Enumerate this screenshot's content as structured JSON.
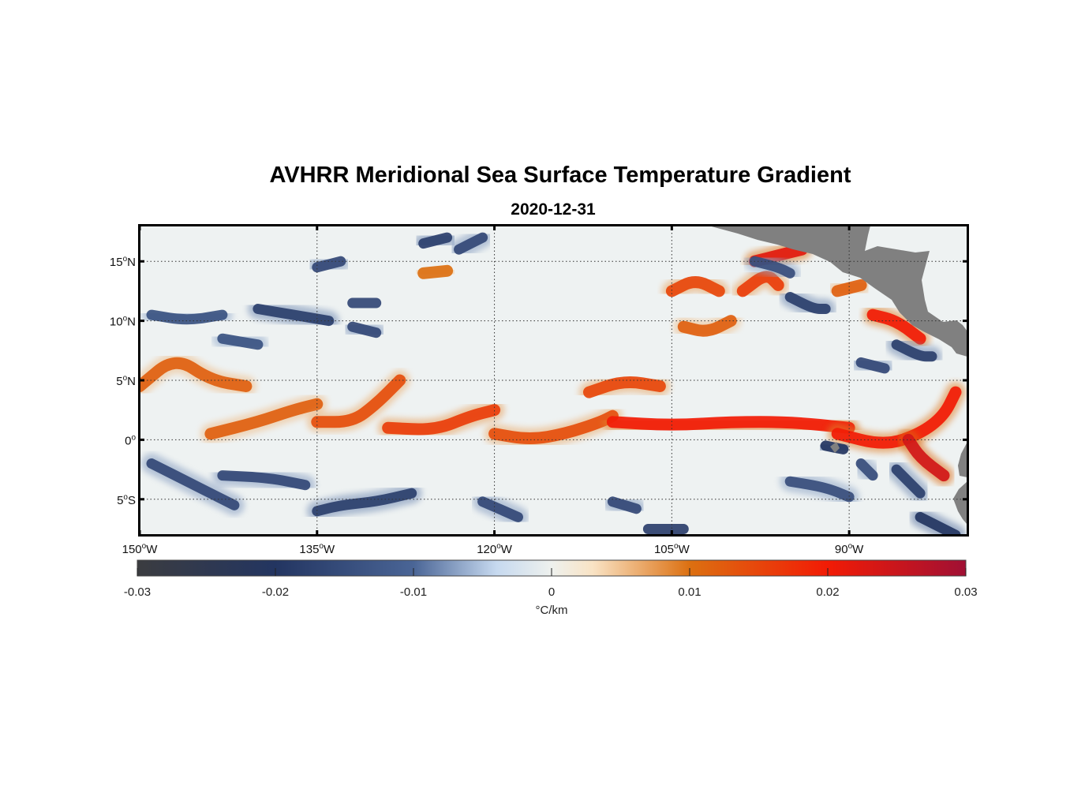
{
  "title": "AVHRR Meridional Sea Surface Temperature Gradient",
  "subtitle": "2020-12-31",
  "colorbar": {
    "units": "°C/km",
    "range": [
      -0.03,
      0.03
    ],
    "ticks": [
      "-0.03",
      "-0.02",
      "-0.01",
      "0",
      "0.01",
      "0.02",
      "0.03"
    ],
    "tick_values": [
      -0.03,
      -0.02,
      -0.01,
      0,
      0.01,
      0.02,
      0.03
    ],
    "stops": [
      {
        "value": -0.03,
        "color": "#3b3c40"
      },
      {
        "value": -0.02,
        "color": "#233561"
      },
      {
        "value": -0.01,
        "color": "#4a6596"
      },
      {
        "value": -0.004,
        "color": "#c6d9ef"
      },
      {
        "value": 0,
        "color": "#eef1ee"
      },
      {
        "value": 0.003,
        "color": "#f9e3c4"
      },
      {
        "value": 0.01,
        "color": "#dc7011"
      },
      {
        "value": 0.02,
        "color": "#f21b05"
      },
      {
        "value": 0.03,
        "color": "#a01034"
      }
    ]
  },
  "map": {
    "lon_range": [
      -150,
      -80
    ],
    "lat_range": [
      -8,
      18
    ],
    "land_color": "#808080",
    "grid": "dotted",
    "x_ticks": [
      {
        "lon": -150,
        "deg": "150",
        "hemi": "W"
      },
      {
        "lon": -135,
        "deg": "135",
        "hemi": "W"
      },
      {
        "lon": -120,
        "deg": "120",
        "hemi": "W"
      },
      {
        "lon": -105,
        "deg": "105",
        "hemi": "W"
      },
      {
        "lon": -90,
        "deg": "90",
        "hemi": "W"
      }
    ],
    "y_ticks": [
      {
        "lat": 15,
        "deg": "15",
        "hemi": "N"
      },
      {
        "lat": 10,
        "deg": "10",
        "hemi": "N"
      },
      {
        "lat": 5,
        "deg": "5",
        "hemi": "N"
      },
      {
        "lat": 0,
        "deg": "0",
        "hemi": ""
      },
      {
        "lat": -5,
        "deg": "5",
        "hemi": "S"
      }
    ],
    "field_features": [
      {
        "sign": "positive",
        "level": 0.012,
        "path": [
          [
            -150,
            4.5
          ],
          [
            -147,
            7
          ],
          [
            -144,
            5
          ],
          [
            -141,
            4.5
          ]
        ]
      },
      {
        "sign": "positive",
        "level": 0.012,
        "path": [
          [
            -144,
            0.5
          ],
          [
            -140,
            1.5
          ],
          [
            -137,
            2.5
          ],
          [
            -135,
            3
          ]
        ]
      },
      {
        "sign": "positive",
        "level": 0.014,
        "path": [
          [
            -135,
            1.5
          ],
          [
            -132,
            1.5
          ],
          [
            -130,
            3
          ],
          [
            -128,
            5
          ]
        ]
      },
      {
        "sign": "positive",
        "level": 0.016,
        "path": [
          [
            -129,
            1
          ],
          [
            -125,
            0.8
          ],
          [
            -122,
            2
          ],
          [
            -120,
            2.5
          ]
        ]
      },
      {
        "sign": "positive",
        "level": 0.014,
        "path": [
          [
            -120,
            0.5
          ],
          [
            -117,
            0
          ],
          [
            -114,
            0.5
          ],
          [
            -111,
            1.5
          ],
          [
            -110,
            2
          ]
        ]
      },
      {
        "sign": "positive",
        "level": 0.015,
        "path": [
          [
            -112,
            4
          ],
          [
            -109,
            5
          ],
          [
            -106,
            4.5
          ]
        ]
      },
      {
        "sign": "positive",
        "level": 0.02,
        "path": [
          [
            -110,
            1.5
          ],
          [
            -105,
            1.2
          ],
          [
            -100,
            1.5
          ],
          [
            -95,
            1.5
          ],
          [
            -90,
            1
          ]
        ]
      },
      {
        "sign": "positive",
        "level": 0.02,
        "path": [
          [
            -91,
            0.5
          ],
          [
            -87,
            -0.5
          ],
          [
            -84,
            0.5
          ],
          [
            -82,
            2
          ],
          [
            -81,
            4
          ]
        ]
      },
      {
        "sign": "positive",
        "level": 0.024,
        "path": [
          [
            -85,
            0
          ],
          [
            -84,
            -1.5
          ],
          [
            -82,
            -3
          ]
        ]
      },
      {
        "sign": "positive",
        "level": 0.015,
        "path": [
          [
            -105,
            12.5
          ],
          [
            -103,
            13.5
          ],
          [
            -101,
            12.5
          ]
        ]
      },
      {
        "sign": "positive",
        "level": 0.012,
        "path": [
          [
            -104,
            9.5
          ],
          [
            -102,
            9
          ],
          [
            -100,
            10
          ]
        ]
      },
      {
        "sign": "positive",
        "level": 0.022,
        "path": [
          [
            -98,
            15
          ],
          [
            -96,
            15.5
          ],
          [
            -94,
            16
          ]
        ]
      },
      {
        "sign": "positive",
        "level": 0.016,
        "path": [
          [
            -99,
            12.5
          ],
          [
            -97,
            14
          ],
          [
            -96,
            13
          ]
        ]
      },
      {
        "sign": "positive",
        "level": 0.012,
        "path": [
          [
            -91,
            12.5
          ],
          [
            -89,
            13
          ]
        ]
      },
      {
        "sign": "positive",
        "level": 0.02,
        "path": [
          [
            -88,
            10.5
          ],
          [
            -86,
            10
          ],
          [
            -84,
            8.5
          ]
        ]
      },
      {
        "sign": "positive",
        "level": 0.01,
        "path": [
          [
            -126,
            14
          ],
          [
            -124,
            14.2
          ]
        ]
      },
      {
        "sign": "negative",
        "level": -0.016,
        "path": [
          [
            -135,
            14.5
          ],
          [
            -133,
            15
          ]
        ]
      },
      {
        "sign": "negative",
        "level": -0.018,
        "path": [
          [
            -126,
            16.5
          ],
          [
            -124,
            17
          ]
        ]
      },
      {
        "sign": "negative",
        "level": -0.016,
        "path": [
          [
            -123,
            16
          ],
          [
            -121,
            17
          ]
        ]
      },
      {
        "sign": "negative",
        "level": -0.014,
        "path": [
          [
            -149,
            10.5
          ],
          [
            -146,
            10
          ],
          [
            -143,
            10.5
          ]
        ]
      },
      {
        "sign": "negative",
        "level": -0.018,
        "path": [
          [
            -140,
            11
          ],
          [
            -137,
            10.5
          ],
          [
            -134,
            10
          ]
        ]
      },
      {
        "sign": "negative",
        "level": -0.016,
        "path": [
          [
            -132,
            9.5
          ],
          [
            -130,
            9
          ]
        ]
      },
      {
        "sign": "negative",
        "level": -0.014,
        "path": [
          [
            -143,
            8.5
          ],
          [
            -140,
            8
          ]
        ]
      },
      {
        "sign": "negative",
        "level": -0.016,
        "path": [
          [
            -132,
            11.5
          ],
          [
            -130,
            11.5
          ]
        ]
      },
      {
        "sign": "negative",
        "level": -0.015,
        "path": [
          [
            -98,
            15
          ],
          [
            -96,
            14.5
          ],
          [
            -95,
            14
          ]
        ]
      },
      {
        "sign": "negative",
        "level": -0.018,
        "path": [
          [
            -95,
            12
          ],
          [
            -93,
            11
          ],
          [
            -92,
            11
          ]
        ]
      },
      {
        "sign": "negative",
        "level": -0.018,
        "path": [
          [
            -86,
            8
          ],
          [
            -84,
            7
          ],
          [
            -83,
            7
          ]
        ]
      },
      {
        "sign": "negative",
        "level": -0.016,
        "path": [
          [
            -89,
            6.5
          ],
          [
            -87,
            6
          ]
        ]
      },
      {
        "sign": "negative",
        "level": -0.016,
        "path": [
          [
            -149,
            -2
          ],
          [
            -145,
            -4
          ],
          [
            -142,
            -5.5
          ]
        ]
      },
      {
        "sign": "negative",
        "level": -0.016,
        "path": [
          [
            -143,
            -3
          ],
          [
            -139,
            -3.2
          ],
          [
            -136,
            -3.8
          ]
        ]
      },
      {
        "sign": "negative",
        "level": -0.018,
        "path": [
          [
            -135,
            -6
          ],
          [
            -133,
            -5.5
          ],
          [
            -130,
            -5.2
          ],
          [
            -127,
            -4.5
          ]
        ]
      },
      {
        "sign": "negative",
        "level": -0.016,
        "path": [
          [
            -121,
            -5.2
          ],
          [
            -118,
            -6.5
          ]
        ]
      },
      {
        "sign": "negative",
        "level": -0.016,
        "path": [
          [
            -110,
            -5.2
          ],
          [
            -108,
            -5.8
          ]
        ]
      },
      {
        "sign": "negative",
        "level": -0.015,
        "path": [
          [
            -95,
            -3.5
          ],
          [
            -92,
            -4
          ],
          [
            -90,
            -4.8
          ]
        ]
      },
      {
        "sign": "negative",
        "level": -0.015,
        "path": [
          [
            -89,
            -2
          ],
          [
            -88,
            -3
          ]
        ]
      },
      {
        "sign": "negative",
        "level": -0.018,
        "path": [
          [
            -86,
            -2.5
          ],
          [
            -84,
            -4.5
          ]
        ]
      },
      {
        "sign": "negative",
        "level": -0.02,
        "path": [
          [
            -84,
            -6.5
          ],
          [
            -81,
            -8
          ]
        ]
      },
      {
        "sign": "negative",
        "level": -0.018,
        "path": [
          [
            -107,
            -7.5
          ],
          [
            -104,
            -7.5
          ]
        ]
      },
      {
        "sign": "negative",
        "level": -0.02,
        "path": [
          [
            -92,
            -0.5
          ],
          [
            -90.5,
            -0.8
          ]
        ]
      }
    ]
  }
}
